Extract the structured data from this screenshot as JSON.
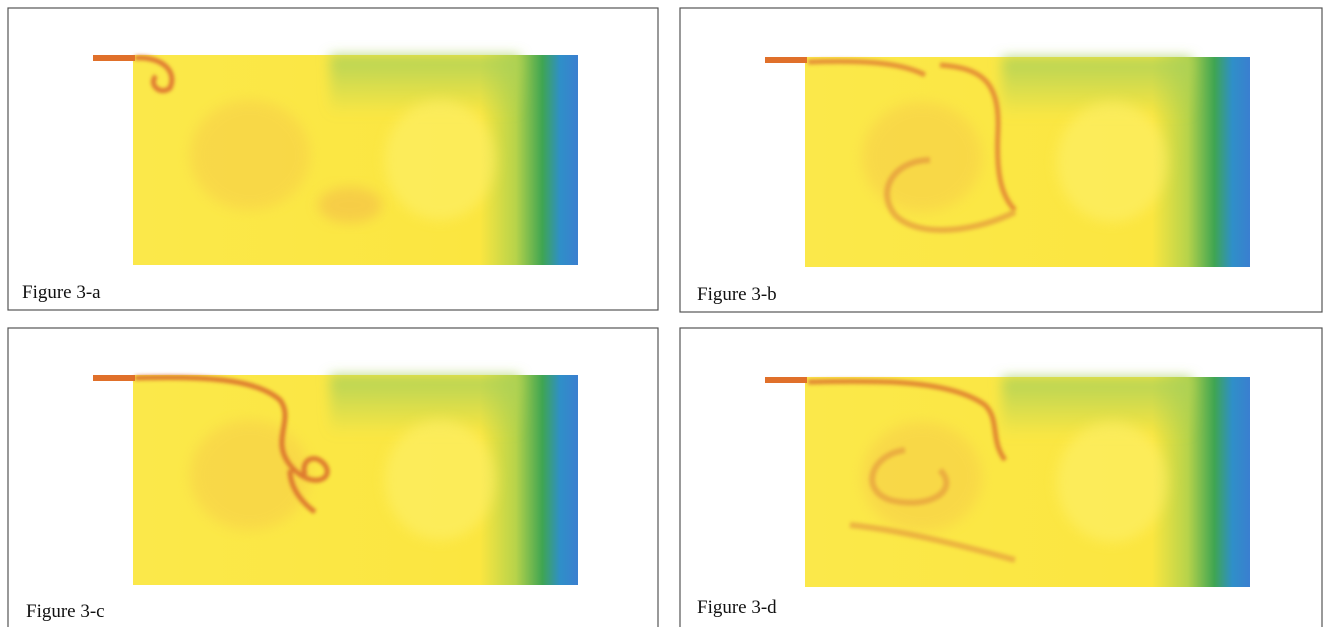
{
  "panels": [
    {
      "caption": "Figure 3-a"
    },
    {
      "caption": "Figure 3-b"
    },
    {
      "caption": "Figure 3-c"
    },
    {
      "caption": "Figure 3-d"
    }
  ]
}
